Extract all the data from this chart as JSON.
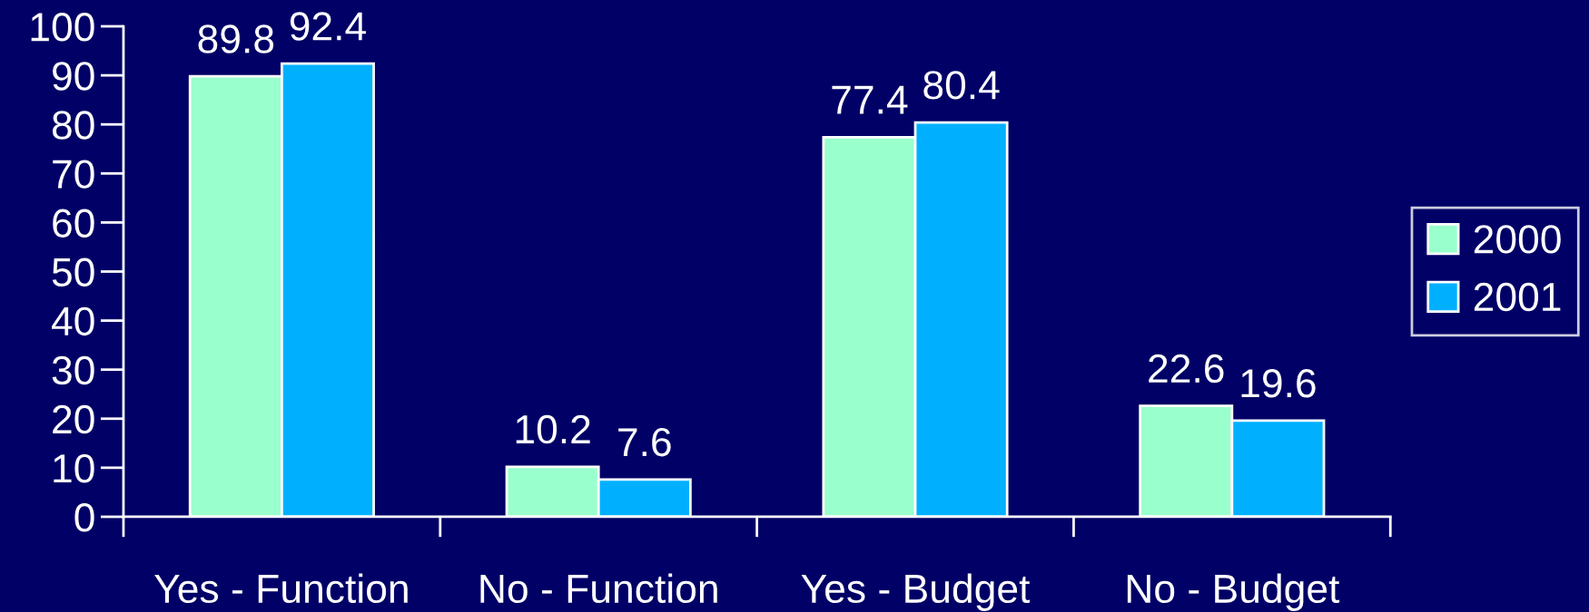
{
  "chart_data": {
    "type": "bar",
    "categories": [
      "Yes - Function",
      "No - Function",
      "Yes - Budget",
      "No - Budget"
    ],
    "series": [
      {
        "name": "2000",
        "color": "#99ffcc",
        "values": [
          89.8,
          10.2,
          77.4,
          22.6
        ]
      },
      {
        "name": "2001",
        "color": "#00b0ff",
        "values": [
          92.4,
          7.6,
          80.4,
          19.6
        ]
      }
    ],
    "ylim": [
      0,
      100
    ],
    "yticks": [
      0,
      10,
      20,
      30,
      40,
      50,
      60,
      70,
      80,
      90,
      100
    ],
    "data_labels": true,
    "legend": "right",
    "grid": false
  }
}
